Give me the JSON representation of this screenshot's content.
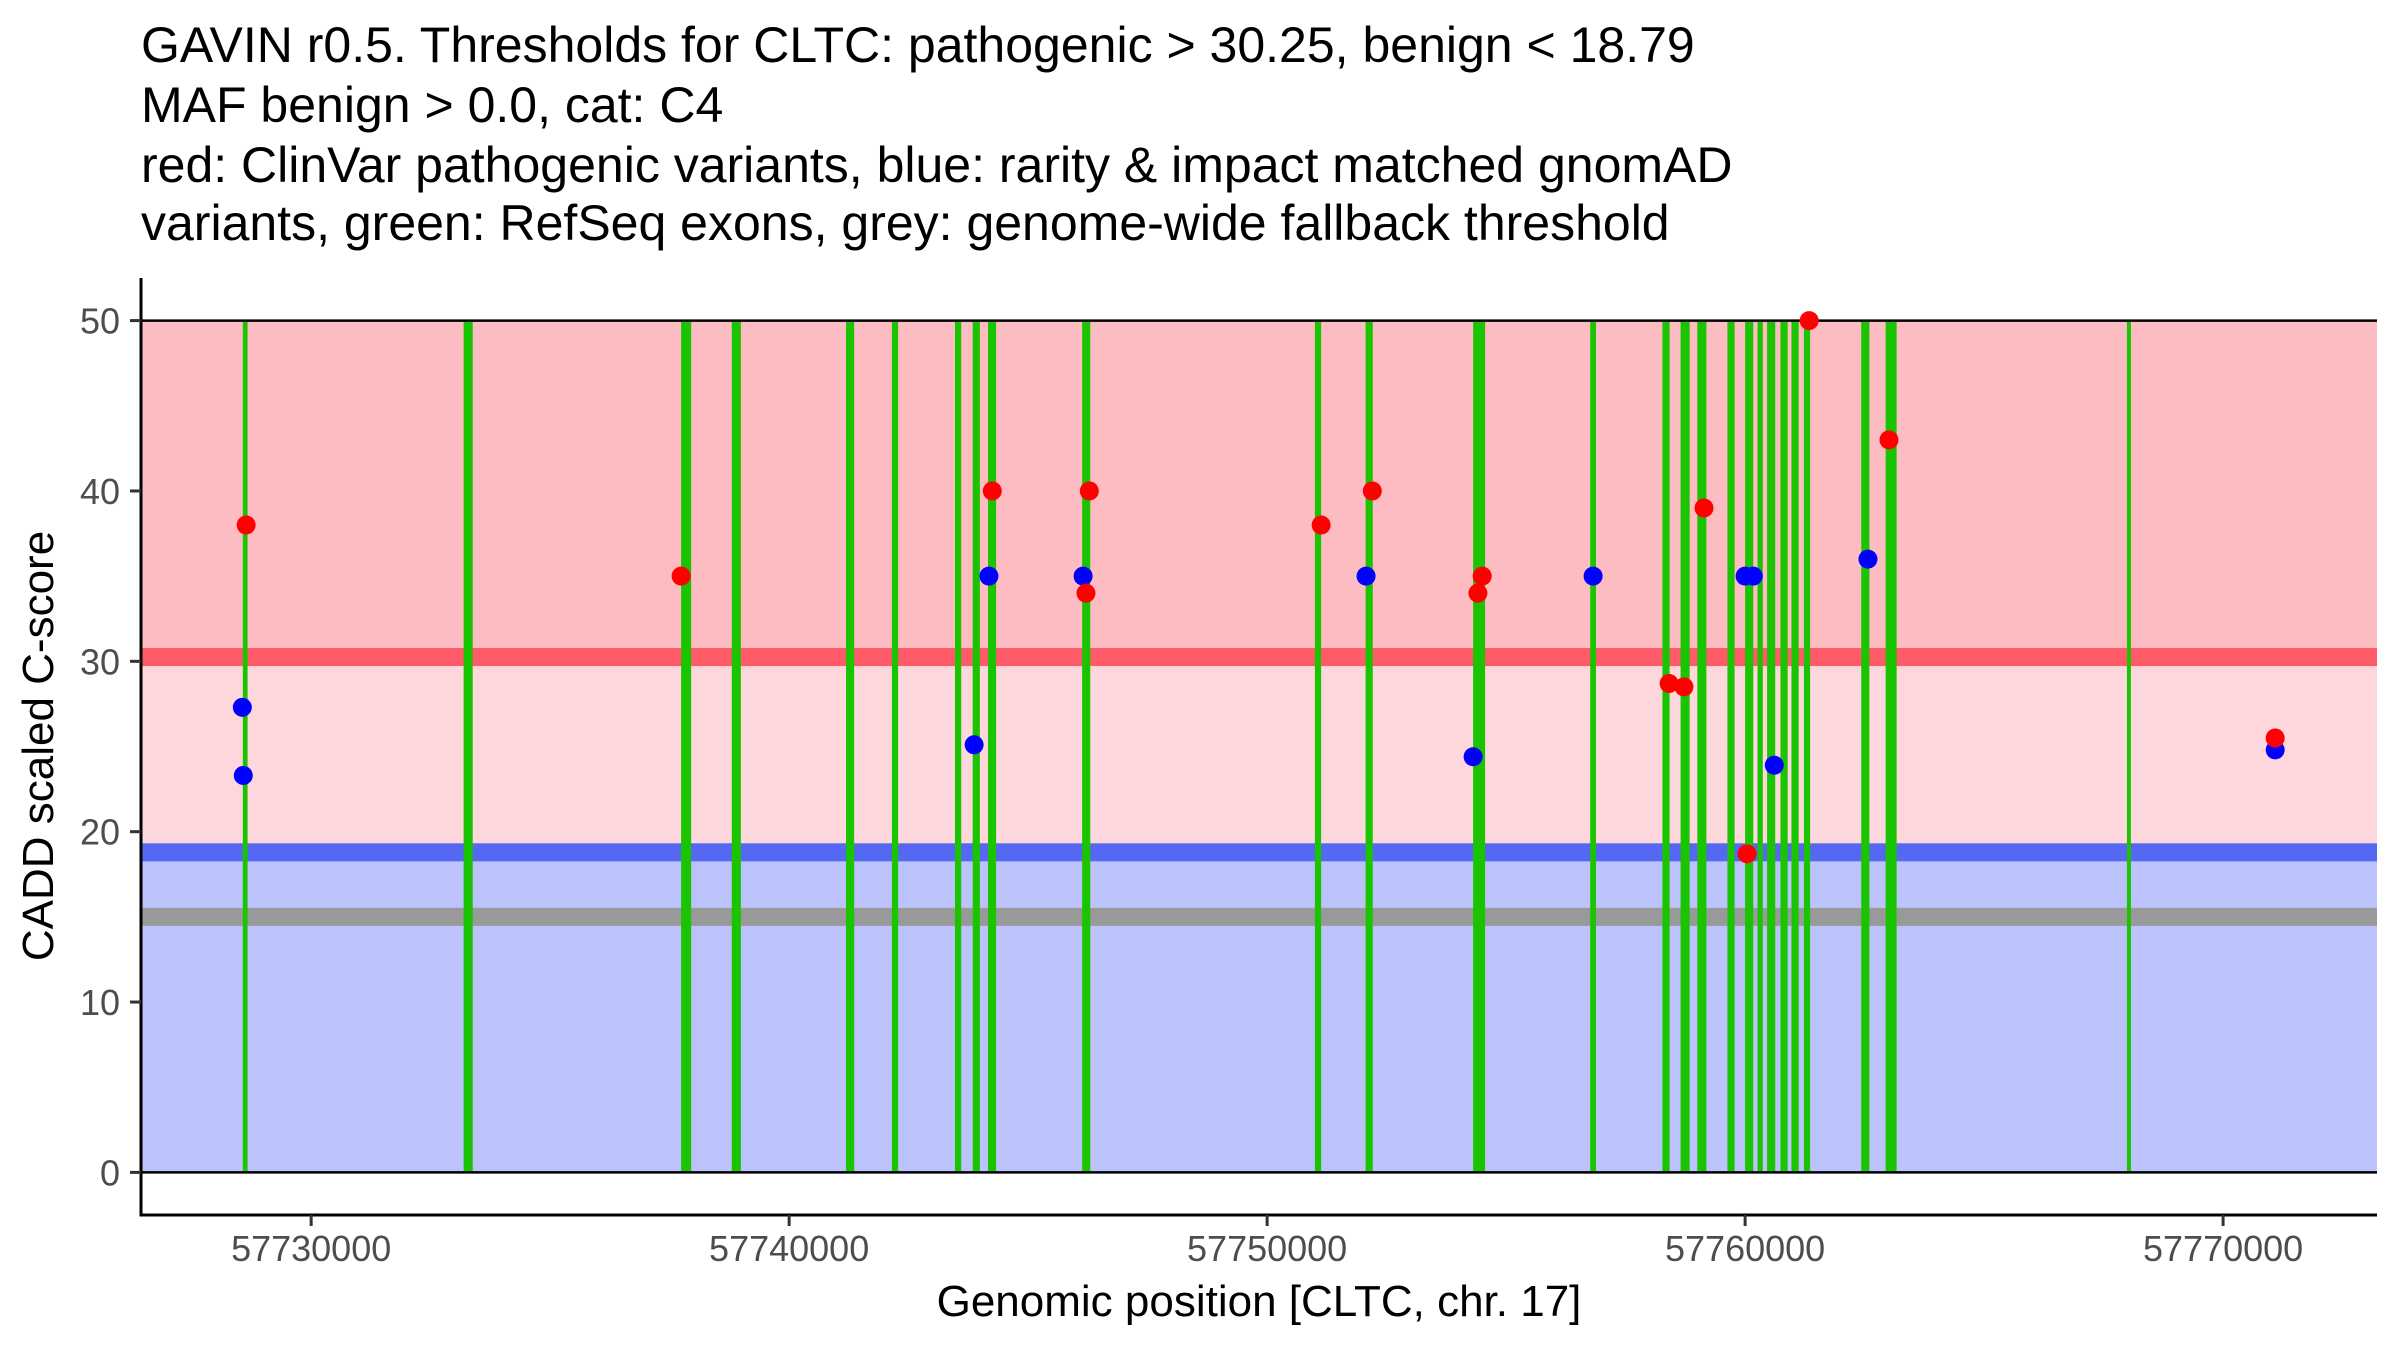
{
  "chart_data": {
    "type": "scatter",
    "title_lines": [
      "GAVIN r0.5. Thresholds for CLTC: pathogenic > 30.25, benign < 18.79",
      "MAF benign > 0.0, cat: C4",
      "red: ClinVar pathogenic variants, blue: rarity & impact matched gnomAD",
      "variants, green: RefSeq exons, grey: genome-wide fallback threshold"
    ],
    "xlabel": "Genomic position [CLTC, chr. 17]",
    "ylabel": "CADD scaled C-score",
    "xlim": [
      57726440,
      57773220
    ],
    "ylim": [
      -2.5,
      52.5
    ],
    "x_ticks": [
      57730000,
      57740000,
      57750000,
      57760000,
      57770000
    ],
    "x_tick_labels": [
      "57730000",
      "57740000",
      "57750000",
      "57760000",
      "57770000"
    ],
    "y_ticks": [
      0,
      10,
      20,
      30,
      40,
      50
    ],
    "y_tick_labels": [
      "0",
      "10",
      "20",
      "30",
      "40",
      "50"
    ],
    "grid": false,
    "legend": "none",
    "thresholds": {
      "pathogenic": 30.25,
      "benign": 18.79,
      "genome_wide_fallback": 15.0,
      "score_max": 50
    },
    "colors": {
      "pathogenic_zone": "#fdbcc2",
      "intermediate_zone": "#fdd7dc",
      "benign_zone": "#bcc2fb",
      "pathogenic_line": "#ff5a68",
      "benign_line": "#5568f2",
      "fallback_line": "#999999",
      "exon": "#1ac400",
      "clinvar": "#ff0000",
      "gnomad": "#0000ff"
    },
    "exons": [
      {
        "start": 57728570,
        "end": 57728670
      },
      {
        "start": 57733190,
        "end": 57733380
      },
      {
        "start": 57737740,
        "end": 57737950
      },
      {
        "start": 57738800,
        "end": 57738990
      },
      {
        "start": 57741190,
        "end": 57741360
      },
      {
        "start": 57742150,
        "end": 57742280
      },
      {
        "start": 57743470,
        "end": 57743600
      },
      {
        "start": 57743840,
        "end": 57743990
      },
      {
        "start": 57744160,
        "end": 57744330
      },
      {
        "start": 57746130,
        "end": 57746300
      },
      {
        "start": 57751000,
        "end": 57751130
      },
      {
        "start": 57752060,
        "end": 57752210
      },
      {
        "start": 57754310,
        "end": 57754560
      },
      {
        "start": 57756760,
        "end": 57756880
      },
      {
        "start": 57758270,
        "end": 57758420
      },
      {
        "start": 57758650,
        "end": 57758840
      },
      {
        "start": 57759000,
        "end": 57759190
      },
      {
        "start": 57759630,
        "end": 57759780
      },
      {
        "start": 57760000,
        "end": 57760170
      },
      {
        "start": 57760260,
        "end": 57760370
      },
      {
        "start": 57760460,
        "end": 57760630
      },
      {
        "start": 57760740,
        "end": 57760890
      },
      {
        "start": 57760970,
        "end": 57761120
      },
      {
        "start": 57761230,
        "end": 57761360
      },
      {
        "start": 57762430,
        "end": 57762600
      },
      {
        "start": 57762940,
        "end": 57763170
      },
      {
        "start": 57767990,
        "end": 57768070
      }
    ],
    "series": [
      {
        "name": "gnomAD matched variants",
        "color": "#0000ff",
        "x": [
          57728560,
          57728580,
          57743870,
          57744180,
          57746150,
          57752070,
          57754310,
          57756820,
          57760000,
          57760170,
          57760610,
          57762570,
          57771090
        ],
        "y": [
          27.3,
          23.3,
          25.1,
          35,
          35,
          35,
          24.4,
          35,
          35,
          35,
          23.9,
          36,
          24.8
        ]
      },
      {
        "name": "ClinVar pathogenic variants",
        "color": "#ff0000",
        "x": [
          57728640,
          57737740,
          57744250,
          57746280,
          57746210,
          57751130,
          57752200,
          57754500,
          57754410,
          57758410,
          57758720,
          57759140,
          57760040,
          57761340,
          57763010,
          57771090
        ],
        "y": [
          38,
          35,
          40,
          40,
          34,
          38,
          40,
          35,
          34,
          28.7,
          28.5,
          39,
          18.7,
          50,
          43,
          25.5
        ]
      }
    ]
  }
}
